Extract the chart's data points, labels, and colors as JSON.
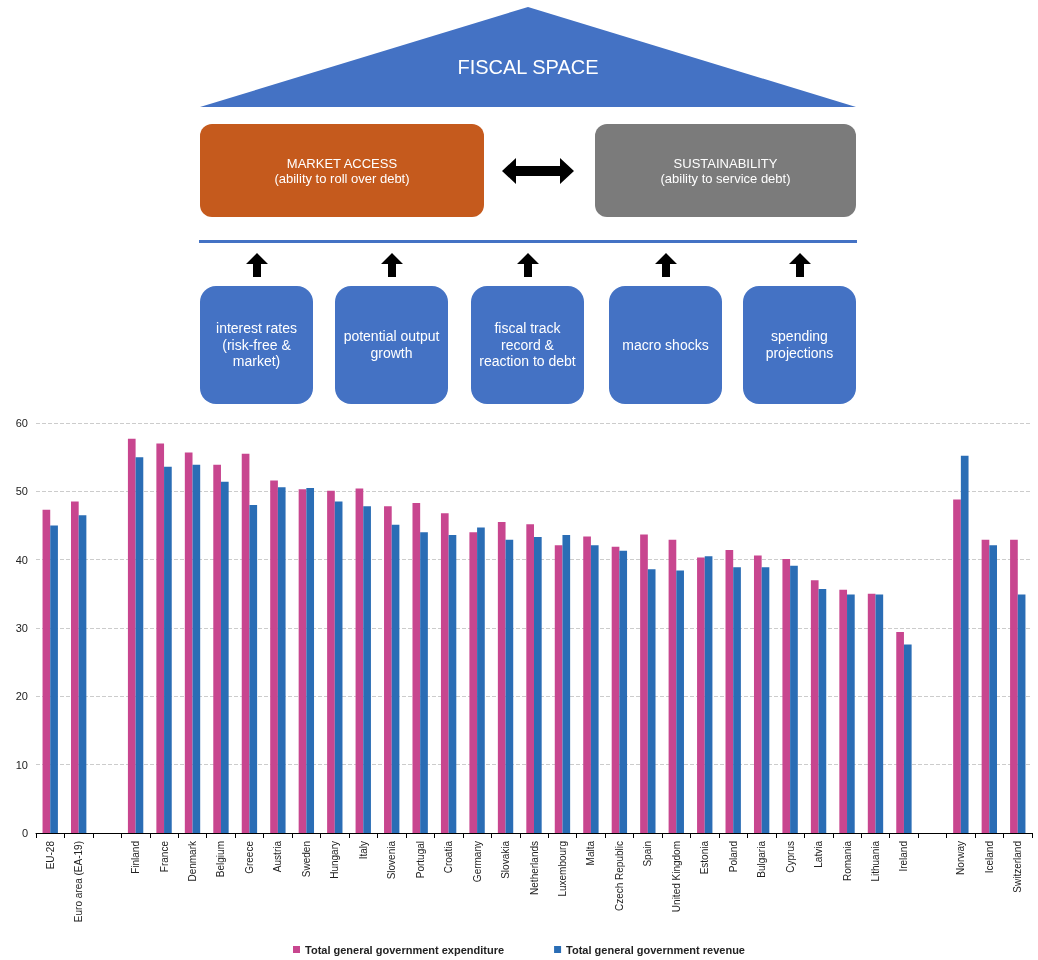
{
  "chart_data": [
    {
      "type": "other",
      "title": "FISCAL SPACE",
      "annotations": [
        "MARKET ACCESS",
        "(ability to roll over debt)",
        "SUSTAINABILITY",
        "(ability to service debt)",
        "interest rates (risk-free & market)",
        "potential output growth",
        "fiscal track record & reaction to debt",
        "macro shocks",
        "spending projections"
      ]
    },
    {
      "type": "bar",
      "categories": [
        "EU-28",
        "Euro area (EA-19)",
        null,
        "Finland",
        "France",
        "Denmark",
        "Belgium",
        "Greece",
        "Austria",
        "Sweden",
        "Hungary",
        "Italy",
        "Slovenia",
        "Portugal",
        "Croatia",
        "Germany",
        "Slovakia",
        "Netherlands",
        "Luxembourg",
        "Malta",
        "Czech Republic",
        "Spain",
        "United Kingdom",
        "Estonia",
        "Poland",
        "Bulgaria",
        "Cyprus",
        "Latvia",
        "Romania",
        "Lithuania",
        "Ireland",
        null,
        "Norway",
        "Iceland",
        "Switzerland"
      ],
      "series": [
        {
          "name": "Total general government expenditure",
          "color": "#c8468f",
          "values": [
            47.3,
            48.5,
            null,
            57.7,
            57.0,
            55.7,
            53.9,
            55.5,
            51.6,
            50.3,
            50.1,
            50.4,
            47.8,
            48.3,
            46.8,
            44.0,
            45.5,
            45.2,
            42.1,
            43.4,
            41.9,
            43.7,
            42.9,
            40.3,
            41.4,
            40.6,
            40.1,
            37.0,
            35.6,
            35.0,
            29.4,
            null,
            48.8,
            42.9,
            42.9
          ]
        },
        {
          "name": "Total general government revenue",
          "color": "#2a6db5",
          "values": [
            45.0,
            46.5,
            null,
            55.0,
            53.6,
            53.9,
            51.4,
            48.0,
            50.6,
            50.5,
            48.5,
            47.8,
            45.1,
            44.0,
            43.6,
            44.7,
            42.9,
            43.3,
            43.6,
            42.1,
            41.3,
            38.6,
            38.4,
            40.5,
            38.9,
            38.9,
            39.1,
            35.7,
            34.9,
            34.9,
            27.6,
            null,
            55.2,
            42.1,
            34.9
          ]
        }
      ],
      "ylim": [
        0,
        60
      ],
      "yticks": [
        0,
        10,
        20,
        30,
        40,
        50,
        60
      ],
      "grid": "y",
      "legend": "bottom"
    }
  ]
}
